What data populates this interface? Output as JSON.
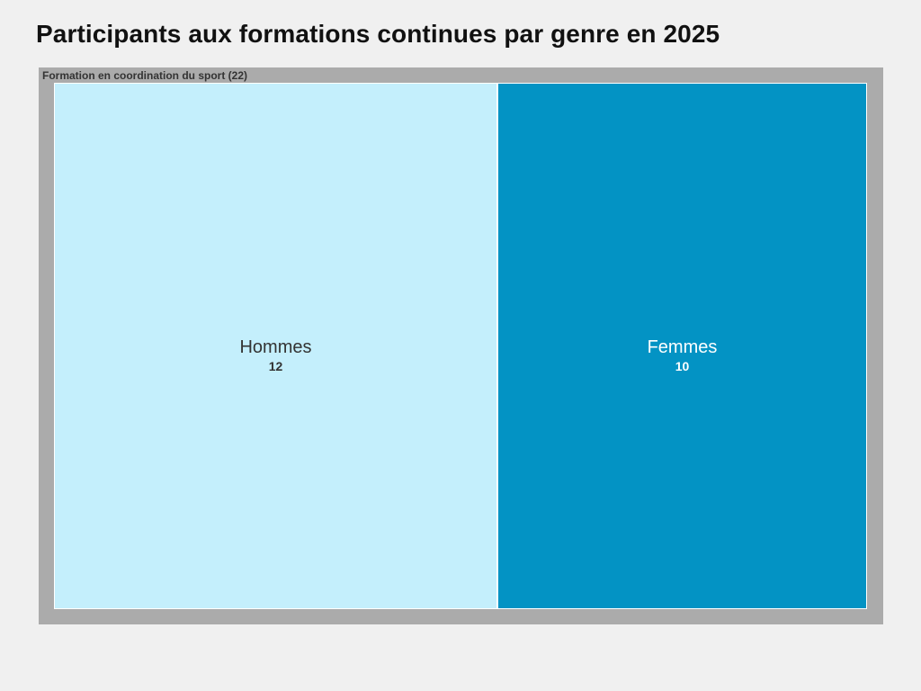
{
  "title": "Participants aux formations continues par genre en 2025",
  "chart_data": {
    "type": "treemap",
    "title": "Participants aux formations continues par genre en 2025",
    "group": {
      "label": "Formation en coordination du sport (22)",
      "name": "Formation en coordination du sport",
      "total": 22
    },
    "categories": [
      "Hommes",
      "Femmes"
    ],
    "values": [
      12,
      10
    ],
    "colors": [
      "#c4effc",
      "#0393c4"
    ],
    "text_colors": [
      "#333333",
      "#ffffff"
    ],
    "group_color": "#ababab"
  }
}
